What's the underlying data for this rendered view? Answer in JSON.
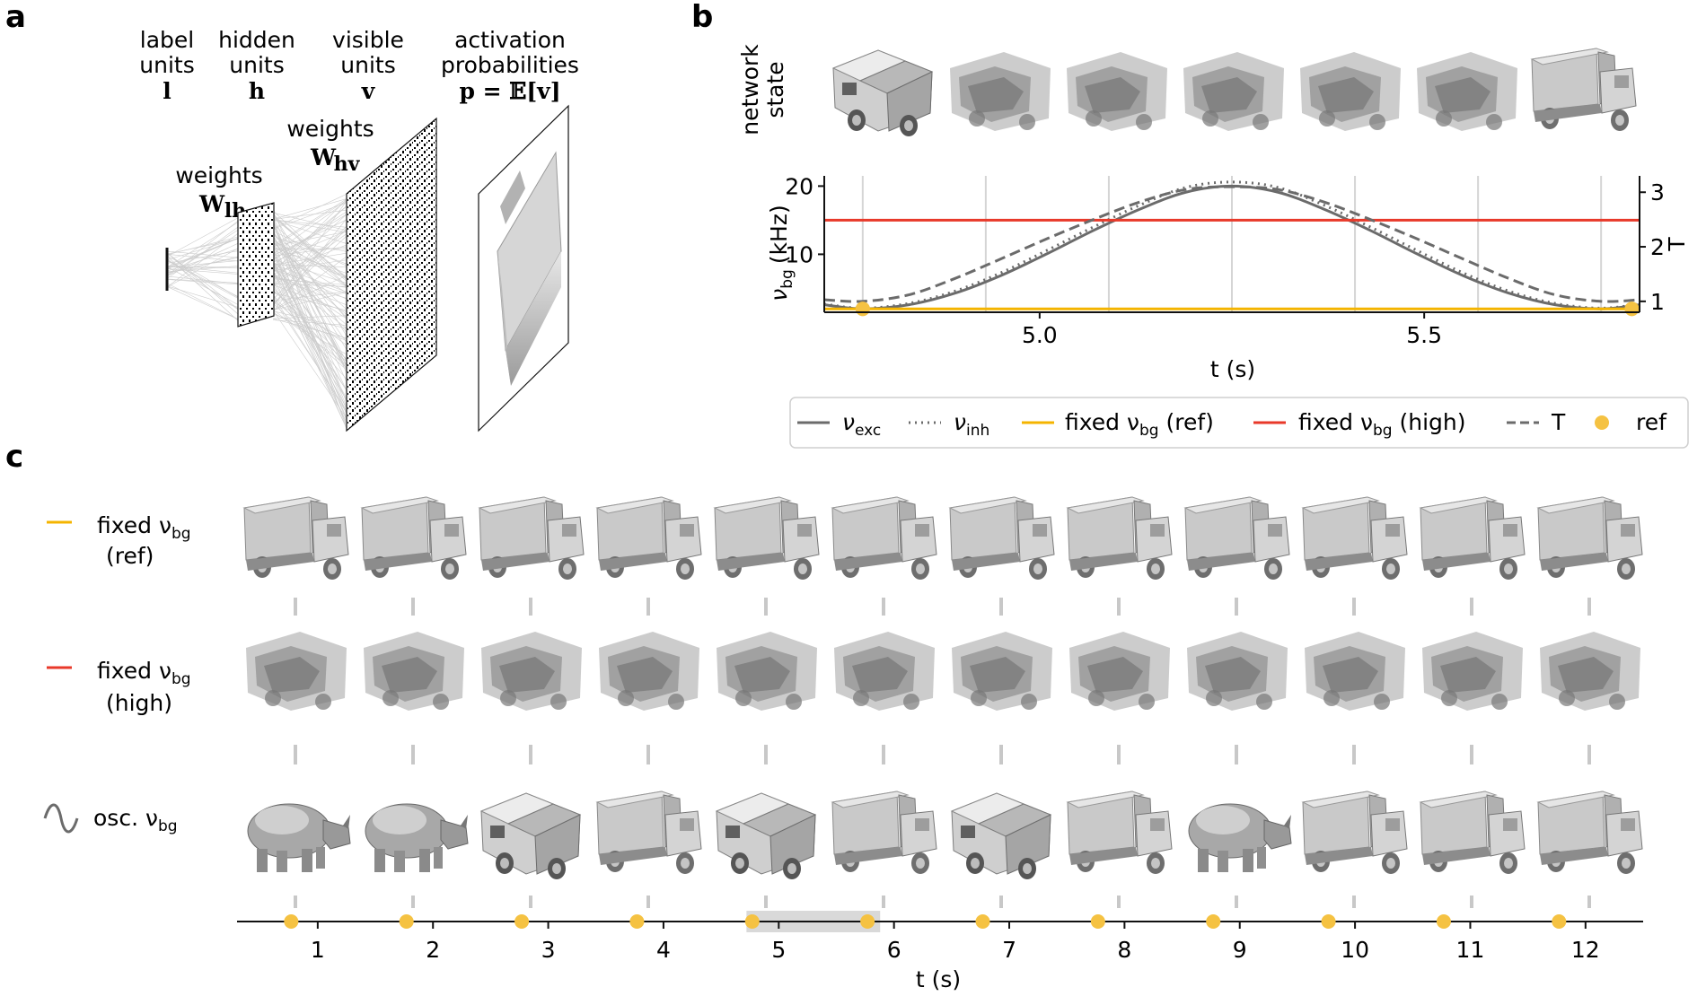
{
  "panels": {
    "a": {
      "letter": "a",
      "columns": [
        {
          "title1": "label",
          "title2": "units",
          "symbol": "l"
        },
        {
          "title1": "hidden",
          "title2": "units",
          "symbol": "h"
        },
        {
          "title1": "visible",
          "title2": "units",
          "symbol": "v"
        },
        {
          "title1": "activation",
          "title2": "probabilities",
          "symbol": "p = 𝔼[v]"
        }
      ],
      "weights_lh": {
        "word": "weights",
        "symbol": "W",
        "sub": "lh"
      },
      "weights_hv": {
        "word": "weights",
        "symbol": "W",
        "sub": "hv"
      }
    },
    "b": {
      "letter": "b",
      "row_label_1": "network",
      "row_label_2": "state",
      "ylabel_left": "ν",
      "ylabel_left_sub": "bg",
      "ylabel_left_unit": "(kHz)",
      "ylabel_right": "T",
      "xlabel": "t (s)",
      "legend": [
        {
          "key": "exc",
          "text": "ν",
          "sub": "exc",
          "style": "solid",
          "color": "#6b6b6b"
        },
        {
          "key": "inh",
          "text": "ν",
          "sub": "inh",
          "style": "dotted",
          "color": "#6b6b6b"
        },
        {
          "key": "ref",
          "text": "fixed ν",
          "sub": "bg",
          "suffix": " (ref)",
          "style": "solid",
          "color": "#f4b400"
        },
        {
          "key": "high",
          "text": "fixed ν",
          "sub": "bg",
          "suffix": " (high)",
          "style": "solid",
          "color": "#e8392a"
        },
        {
          "key": "T",
          "text": "T",
          "style": "dashed",
          "color": "#6b6b6b"
        },
        {
          "key": "dot",
          "text": "ref",
          "style": "marker",
          "color": "#f5c242"
        }
      ]
    },
    "c": {
      "letter": "c",
      "rows": [
        {
          "label": "fixed ν",
          "sub": "bg",
          "label2": "(ref)",
          "color": "#f4b400",
          "marker": "dash"
        },
        {
          "label": "fixed ν",
          "sub": "bg",
          "label2": "(high)",
          "color": "#e8392a",
          "marker": "dash"
        },
        {
          "label": "osc. ν",
          "sub": "bg",
          "label2": "",
          "color": "#6b6b6b",
          "marker": "wave"
        }
      ],
      "xlabel": "t (s)",
      "tick_labels": [
        "1",
        "2",
        "3",
        "4",
        "5",
        "6",
        "7",
        "8",
        "9",
        "10",
        "11",
        "12"
      ]
    }
  },
  "chart_data": [
    {
      "type": "line",
      "panel": "b",
      "xlabel": "t (s)",
      "ylabel": "ν_bg (kHz)",
      "y2label": "T",
      "xlim": [
        4.72,
        5.78
      ],
      "ylim": [
        1.5,
        21.5
      ],
      "y2lim": [
        0.8,
        3.3
      ],
      "xticks": [
        5.0,
        5.5
      ],
      "yticks": [
        10,
        20
      ],
      "y2ticks": [
        1,
        2,
        3
      ],
      "vgrid": [
        4.77,
        4.93,
        5.09,
        5.25,
        5.41,
        5.57,
        5.73
      ],
      "series": [
        {
          "name": "ν_exc",
          "x": [
            4.72,
            4.77,
            4.83,
            4.89,
            4.95,
            5.01,
            5.07,
            5.13,
            5.19,
            5.25,
            5.31,
            5.37,
            5.43,
            5.49,
            5.55,
            5.61,
            5.67,
            5.73,
            5.78
          ],
          "y": [
            2.6,
            2.0,
            2.6,
            4.3,
            6.9,
            10.1,
            13.5,
            16.6,
            19.1,
            20.0,
            19.1,
            16.6,
            13.5,
            10.1,
            6.9,
            4.3,
            2.6,
            2.0,
            2.6
          ]
        },
        {
          "name": "ν_inh",
          "x": [
            4.72,
            4.77,
            4.83,
            4.89,
            4.95,
            5.01,
            5.07,
            5.13,
            5.19,
            5.25,
            5.31,
            5.37,
            5.43,
            5.49,
            5.55,
            5.61,
            5.67,
            5.73,
            5.78
          ],
          "y": [
            2.7,
            2.1,
            2.8,
            4.6,
            7.3,
            10.6,
            14.0,
            17.2,
            19.8,
            20.6,
            19.8,
            17.2,
            14.0,
            10.6,
            7.3,
            4.6,
            2.8,
            2.1,
            2.7
          ]
        },
        {
          "name": "fixed ν_bg (ref)",
          "x": [
            4.72,
            5.78
          ],
          "y": [
            2.0,
            2.0
          ]
        },
        {
          "name": "fixed ν_bg (high)",
          "x": [
            4.72,
            5.78
          ],
          "y": [
            15.0,
            15.0
          ]
        },
        {
          "name": "T",
          "axis": "right",
          "x": [
            4.72,
            4.77,
            4.83,
            4.89,
            4.95,
            5.01,
            5.07,
            5.13,
            5.19,
            5.25,
            5.31,
            5.37,
            5.43,
            5.49,
            5.55,
            5.61,
            5.67,
            5.73,
            5.78
          ],
          "y": [
            1.03,
            1.0,
            1.12,
            1.42,
            1.78,
            2.15,
            2.5,
            2.82,
            3.05,
            3.1,
            3.05,
            2.82,
            2.5,
            2.15,
            1.78,
            1.42,
            1.12,
            1.0,
            1.03
          ]
        },
        {
          "name": "ref",
          "type": "scatter",
          "x": [
            4.77,
            5.77
          ],
          "y": [
            2.0,
            2.0
          ]
        }
      ]
    },
    {
      "type": "scatter",
      "panel": "c",
      "xlabel": "t (s)",
      "xlim": [
        0.3,
        12.5
      ],
      "xticks": [
        1,
        2,
        3,
        4,
        5,
        6,
        7,
        8,
        9,
        10,
        11,
        12
      ],
      "series": [
        {
          "name": "ref",
          "x": [
            0.77,
            1.77,
            2.77,
            3.77,
            4.77,
            5.77,
            6.77,
            7.77,
            8.77,
            9.77,
            10.77,
            11.77
          ],
          "y": [
            0,
            0,
            0,
            0,
            0,
            0,
            0,
            0,
            0,
            0,
            0,
            0
          ]
        }
      ],
      "highlight_interval": [
        4.72,
        5.88
      ]
    }
  ]
}
